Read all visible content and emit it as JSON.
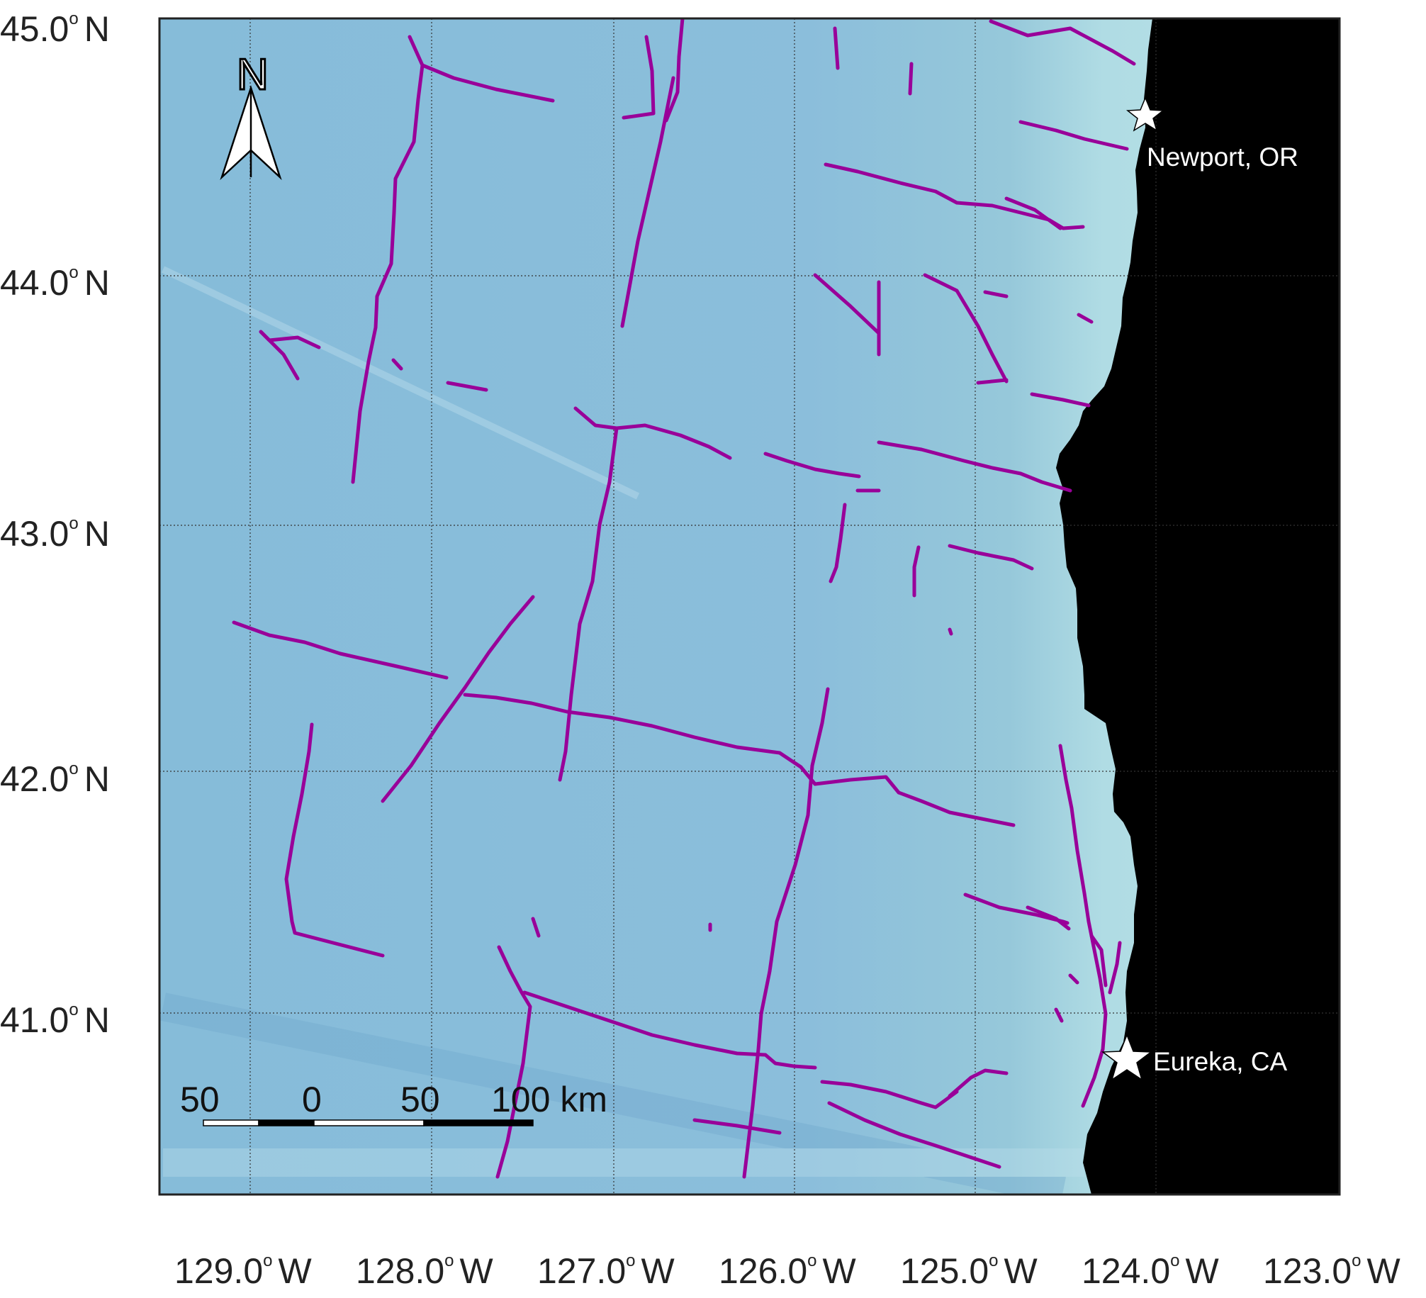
{
  "map": {
    "latitude_labels": [
      {
        "value": "45.0",
        "unit": "N"
      },
      {
        "value": "44.0",
        "unit": "N"
      },
      {
        "value": "43.0",
        "unit": "N"
      },
      {
        "value": "42.0",
        "unit": "N"
      },
      {
        "value": "41.0",
        "unit": "N"
      }
    ],
    "longitude_labels": [
      {
        "value": "129.0",
        "unit": "W"
      },
      {
        "value": "128.0",
        "unit": "W"
      },
      {
        "value": "127.0",
        "unit": "W"
      },
      {
        "value": "126.0",
        "unit": "W"
      },
      {
        "value": "125.0",
        "unit": "W"
      },
      {
        "value": "124.0",
        "unit": "W"
      },
      {
        "value": "123.0",
        "unit": "W"
      }
    ],
    "places": [
      {
        "name": "Newport, OR",
        "marker": "star-icon"
      },
      {
        "name": "Eureka, CA",
        "marker": "star-icon"
      }
    ],
    "north_arrow": {
      "letter": "N",
      "icon": "north-arrow-icon"
    },
    "scale_bar": {
      "labels": [
        "50",
        "0",
        "50",
        "100 km"
      ]
    },
    "colors": {
      "ocean_deep": "#7fb6d6",
      "ocean_shelf": "#b0dde6",
      "land": "#000000",
      "tracklines": "#990099"
    }
  }
}
